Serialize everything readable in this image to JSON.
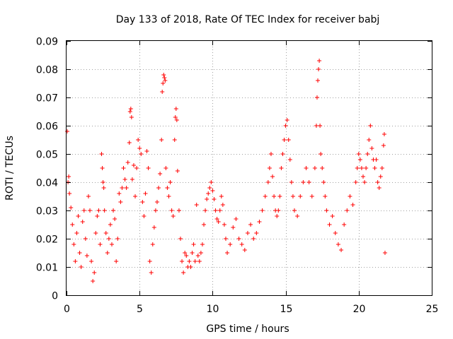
{
  "chart_data": {
    "type": "scatter",
    "title": "Day 133 of 2018, Rate Of TEC Index for receiver babj",
    "xlabel": "GPS time / hours",
    "ylabel": "ROTI / TECUs",
    "xlim": [
      0,
      25
    ],
    "ylim": [
      0,
      0.09
    ],
    "x_ticks": [
      "0",
      "5",
      "10",
      "15",
      "20",
      "25"
    ],
    "y_ticks": [
      "0",
      "0.01",
      "0.02",
      "0.03",
      "0.04",
      "0.05",
      "0.06",
      "0.07",
      "0.08",
      "0.09"
    ],
    "grid": true,
    "marker": "+",
    "color": "#ff0000",
    "series": [
      {
        "name": "",
        "points": [
          [
            0.05,
            0.058
          ],
          [
            0.1,
            0.04
          ],
          [
            0.15,
            0.042
          ],
          [
            0.2,
            0.036
          ],
          [
            0.3,
            0.031
          ],
          [
            0.4,
            0.025
          ],
          [
            0.5,
            0.018
          ],
          [
            0.6,
            0.012
          ],
          [
            0.7,
            0.022
          ],
          [
            0.8,
            0.028
          ],
          [
            0.9,
            0.015
          ],
          [
            1.0,
            0.01
          ],
          [
            1.1,
            0.026
          ],
          [
            1.2,
            0.03
          ],
          [
            1.3,
            0.02
          ],
          [
            1.4,
            0.014
          ],
          [
            1.5,
            0.035
          ],
          [
            1.6,
            0.03
          ],
          [
            1.7,
            0.012
          ],
          [
            1.8,
            0.005
          ],
          [
            1.9,
            0.008
          ],
          [
            2.0,
            0.022
          ],
          [
            2.1,
            0.028
          ],
          [
            2.2,
            0.03
          ],
          [
            2.3,
            0.018
          ],
          [
            2.4,
            0.05
          ],
          [
            2.45,
            0.045
          ],
          [
            2.5,
            0.04
          ],
          [
            2.55,
            0.038
          ],
          [
            2.6,
            0.03
          ],
          [
            2.7,
            0.022
          ],
          [
            2.8,
            0.015
          ],
          [
            2.9,
            0.02
          ],
          [
            3.0,
            0.025
          ],
          [
            3.1,
            0.018
          ],
          [
            3.2,
            0.03
          ],
          [
            3.3,
            0.027
          ],
          [
            3.4,
            0.012
          ],
          [
            3.5,
            0.02
          ],
          [
            3.6,
            0.036
          ],
          [
            3.7,
            0.033
          ],
          [
            3.8,
            0.038
          ],
          [
            3.9,
            0.045
          ],
          [
            4.0,
            0.041
          ],
          [
            4.1,
            0.038
          ],
          [
            4.2,
            0.047
          ],
          [
            4.3,
            0.054
          ],
          [
            4.35,
            0.065
          ],
          [
            4.4,
            0.066
          ],
          [
            4.45,
            0.063
          ],
          [
            4.5,
            0.041
          ],
          [
            4.6,
            0.046
          ],
          [
            4.7,
            0.035
          ],
          [
            4.8,
            0.045
          ],
          [
            4.9,
            0.055
          ],
          [
            5.0,
            0.052
          ],
          [
            5.1,
            0.05
          ],
          [
            5.2,
            0.033
          ],
          [
            5.3,
            0.028
          ],
          [
            5.4,
            0.036
          ],
          [
            5.5,
            0.051
          ],
          [
            5.6,
            0.045
          ],
          [
            5.7,
            0.012
          ],
          [
            5.8,
            0.008
          ],
          [
            5.9,
            0.018
          ],
          [
            6.0,
            0.024
          ],
          [
            6.1,
            0.03
          ],
          [
            6.2,
            0.033
          ],
          [
            6.3,
            0.038
          ],
          [
            6.4,
            0.043
          ],
          [
            6.5,
            0.055
          ],
          [
            6.55,
            0.072
          ],
          [
            6.6,
            0.075
          ],
          [
            6.65,
            0.078
          ],
          [
            6.7,
            0.077
          ],
          [
            6.75,
            0.076
          ],
          [
            6.8,
            0.045
          ],
          [
            6.9,
            0.038
          ],
          [
            7.0,
            0.035
          ],
          [
            7.1,
            0.04
          ],
          [
            7.2,
            0.03
          ],
          [
            7.3,
            0.028
          ],
          [
            7.4,
            0.055
          ],
          [
            7.45,
            0.063
          ],
          [
            7.5,
            0.066
          ],
          [
            7.55,
            0.062
          ],
          [
            7.6,
            0.044
          ],
          [
            7.7,
            0.03
          ],
          [
            7.8,
            0.02
          ],
          [
            7.9,
            0.012
          ],
          [
            8.0,
            0.008
          ],
          [
            8.1,
            0.015
          ],
          [
            8.2,
            0.014
          ],
          [
            8.3,
            0.01
          ],
          [
            8.4,
            0.012
          ],
          [
            8.5,
            0.01
          ],
          [
            8.6,
            0.015
          ],
          [
            8.7,
            0.018
          ],
          [
            8.8,
            0.012
          ],
          [
            8.9,
            0.032
          ],
          [
            9.0,
            0.014
          ],
          [
            9.1,
            0.012
          ],
          [
            9.2,
            0.015
          ],
          [
            9.3,
            0.018
          ],
          [
            9.4,
            0.025
          ],
          [
            9.5,
            0.03
          ],
          [
            9.6,
            0.034
          ],
          [
            9.7,
            0.036
          ],
          [
            9.8,
            0.038
          ],
          [
            9.9,
            0.04
          ],
          [
            10.0,
            0.037
          ],
          [
            10.1,
            0.034
          ],
          [
            10.2,
            0.03
          ],
          [
            10.3,
            0.027
          ],
          [
            10.4,
            0.026
          ],
          [
            10.5,
            0.03
          ],
          [
            10.6,
            0.035
          ],
          [
            10.7,
            0.032
          ],
          [
            10.8,
            0.025
          ],
          [
            10.9,
            0.02
          ],
          [
            11.0,
            0.015
          ],
          [
            11.2,
            0.018
          ],
          [
            11.4,
            0.024
          ],
          [
            11.6,
            0.027
          ],
          [
            11.8,
            0.02
          ],
          [
            12.0,
            0.018
          ],
          [
            12.2,
            0.016
          ],
          [
            12.4,
            0.022
          ],
          [
            12.6,
            0.025
          ],
          [
            12.8,
            0.02
          ],
          [
            13.0,
            0.022
          ],
          [
            13.2,
            0.026
          ],
          [
            13.4,
            0.03
          ],
          [
            13.6,
            0.035
          ],
          [
            13.8,
            0.04
          ],
          [
            13.9,
            0.045
          ],
          [
            14.0,
            0.05
          ],
          [
            14.1,
            0.042
          ],
          [
            14.2,
            0.035
          ],
          [
            14.3,
            0.03
          ],
          [
            14.4,
            0.028
          ],
          [
            14.5,
            0.03
          ],
          [
            14.6,
            0.035
          ],
          [
            14.7,
            0.045
          ],
          [
            14.8,
            0.05
          ],
          [
            14.9,
            0.055
          ],
          [
            15.0,
            0.06
          ],
          [
            15.1,
            0.062
          ],
          [
            15.2,
            0.055
          ],
          [
            15.3,
            0.048
          ],
          [
            15.4,
            0.04
          ],
          [
            15.5,
            0.035
          ],
          [
            15.6,
            0.03
          ],
          [
            15.8,
            0.028
          ],
          [
            16.0,
            0.035
          ],
          [
            16.2,
            0.04
          ],
          [
            16.4,
            0.045
          ],
          [
            16.6,
            0.04
          ],
          [
            16.8,
            0.035
          ],
          [
            17.0,
            0.045
          ],
          [
            17.1,
            0.06
          ],
          [
            17.15,
            0.07
          ],
          [
            17.2,
            0.076
          ],
          [
            17.25,
            0.08
          ],
          [
            17.3,
            0.083
          ],
          [
            17.35,
            0.06
          ],
          [
            17.4,
            0.05
          ],
          [
            17.5,
            0.045
          ],
          [
            17.6,
            0.04
          ],
          [
            17.7,
            0.035
          ],
          [
            17.8,
            0.03
          ],
          [
            18.0,
            0.025
          ],
          [
            18.2,
            0.028
          ],
          [
            18.4,
            0.022
          ],
          [
            18.6,
            0.018
          ],
          [
            18.8,
            0.016
          ],
          [
            19.0,
            0.025
          ],
          [
            19.2,
            0.03
          ],
          [
            19.4,
            0.035
          ],
          [
            19.6,
            0.032
          ],
          [
            19.8,
            0.04
          ],
          [
            19.9,
            0.045
          ],
          [
            20.0,
            0.05
          ],
          [
            20.1,
            0.048
          ],
          [
            20.2,
            0.045
          ],
          [
            20.3,
            0.042
          ],
          [
            20.4,
            0.04
          ],
          [
            20.5,
            0.045
          ],
          [
            20.6,
            0.05
          ],
          [
            20.7,
            0.055
          ],
          [
            20.8,
            0.06
          ],
          [
            20.9,
            0.052
          ],
          [
            21.0,
            0.048
          ],
          [
            21.1,
            0.045
          ],
          [
            21.2,
            0.048
          ],
          [
            21.3,
            0.04
          ],
          [
            21.4,
            0.038
          ],
          [
            21.5,
            0.042
          ],
          [
            21.6,
            0.045
          ],
          [
            21.7,
            0.053
          ],
          [
            21.75,
            0.057
          ],
          [
            21.8,
            0.015
          ]
        ]
      }
    ]
  }
}
